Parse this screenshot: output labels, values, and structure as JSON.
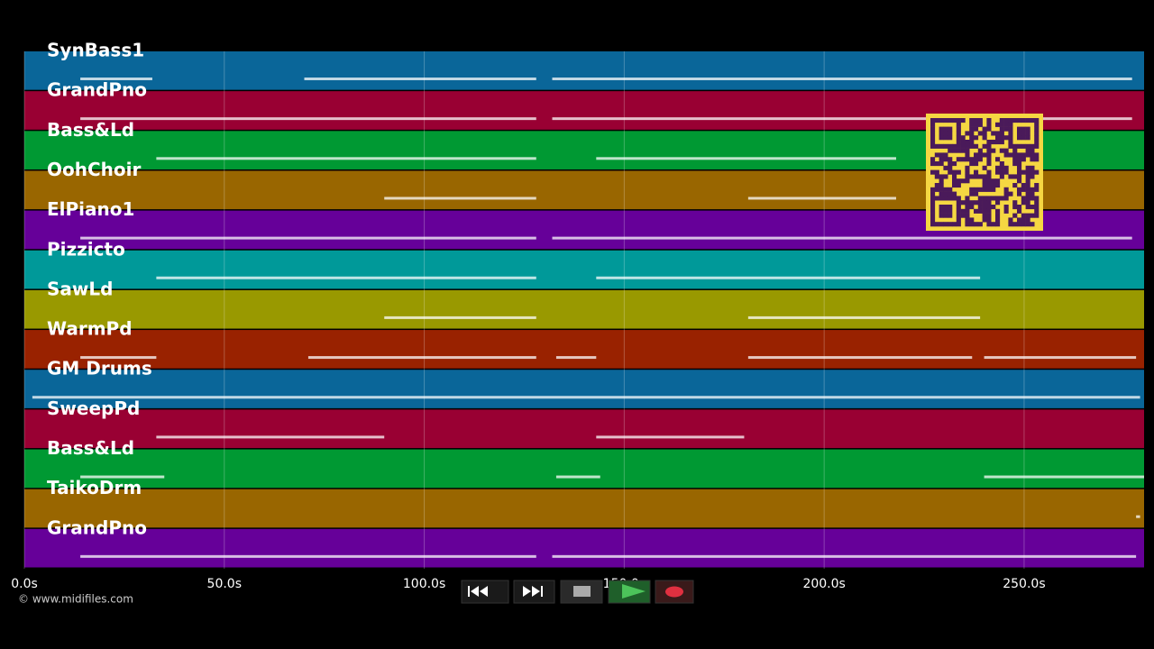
{
  "tracks": [
    {
      "name": "SynBass1",
      "color": "#0a6699",
      "segments": [
        [
          14,
          32
        ],
        [
          70,
          128
        ],
        [
          132,
          277
        ]
      ]
    },
    {
      "name": "GrandPno",
      "color": "#990033",
      "segments": [
        [
          14,
          128
        ],
        [
          132,
          277
        ]
      ]
    },
    {
      "name": "Bass&Ld",
      "color": "#009933",
      "segments": [
        [
          33,
          128
        ],
        [
          143,
          218
        ]
      ]
    },
    {
      "name": "OohChoir",
      "color": "#996600",
      "segments": [
        [
          90,
          128
        ],
        [
          181,
          218
        ]
      ]
    },
    {
      "name": "ElPiano1",
      "color": "#660099",
      "segments": [
        [
          14,
          128
        ],
        [
          132,
          277
        ]
      ]
    },
    {
      "name": "Pizzicto",
      "color": "#009999",
      "segments": [
        [
          33,
          128
        ],
        [
          143,
          239
        ]
      ]
    },
    {
      "name": "SawLd",
      "color": "#999900",
      "segments": [
        [
          90,
          128
        ],
        [
          181,
          239
        ]
      ]
    },
    {
      "name": "WarmPd",
      "color": "#992200",
      "segments": [
        [
          14,
          33
        ],
        [
          71,
          128
        ],
        [
          133,
          143
        ],
        [
          181,
          237
        ],
        [
          240,
          278
        ]
      ]
    },
    {
      "name": "GM Drums",
      "color": "#0a6699",
      "segments": [
        [
          2,
          279
        ]
      ]
    },
    {
      "name": "SweepPd",
      "color": "#990033",
      "segments": [
        [
          33,
          90
        ],
        [
          143,
          180
        ]
      ]
    },
    {
      "name": "Bass&Ld",
      "color": "#009933",
      "segments": [
        [
          14,
          35
        ],
        [
          133,
          144
        ],
        [
          240,
          280
        ]
      ]
    },
    {
      "name": "TaikoDrm",
      "color": "#996600",
      "segments": [
        [
          278,
          279
        ]
      ]
    },
    {
      "name": "GrandPno",
      "color": "#660099",
      "segments": [
        [
          14,
          128
        ],
        [
          132,
          278
        ]
      ]
    }
  ],
  "timeline": {
    "xlim": [
      0,
      280
    ],
    "xticks": [
      {
        "value": 0,
        "label": "0.0s"
      },
      {
        "value": 50,
        "label": "50.0s"
      },
      {
        "value": 100,
        "label": "100.0s"
      },
      {
        "value": 150,
        "label": "150.0s"
      },
      {
        "value": 200,
        "label": "200.0s"
      },
      {
        "value": 250,
        "label": "250.0s"
      }
    ]
  },
  "footer": {
    "copyright": "© www.midifiles.com"
  }
}
